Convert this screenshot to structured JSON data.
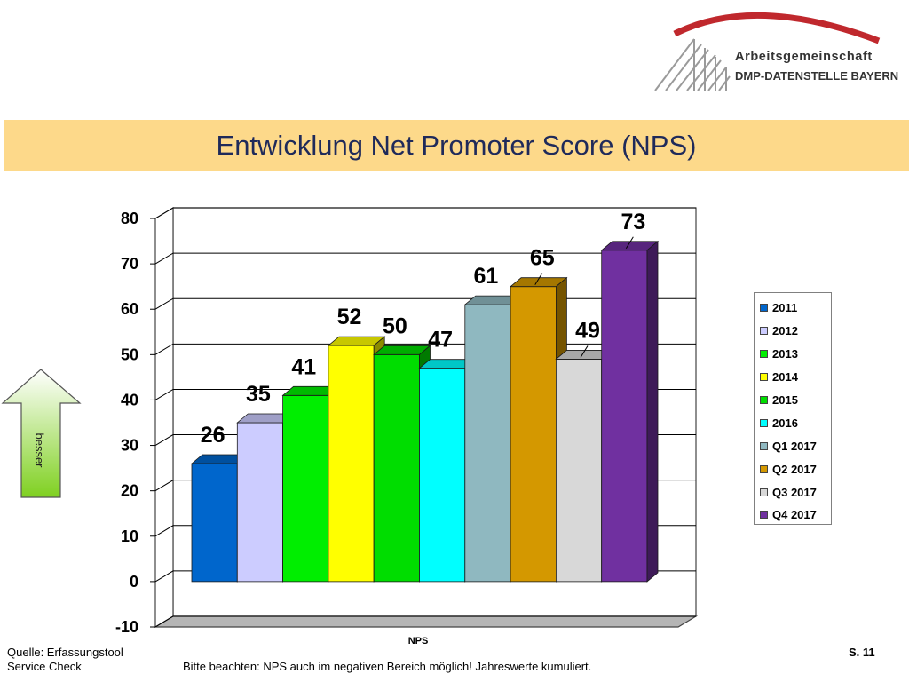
{
  "logo": {
    "line1": "Arbeitsgemeinschaft",
    "line2": "DMP-DATENSTELLE BAYERN",
    "colors": {
      "red": "#c0282d",
      "gray": "#9a9a9a"
    }
  },
  "title": "Entwicklung Net Promoter Score (NPS)",
  "chart_data": {
    "type": "bar",
    "categories": [
      "NPS"
    ],
    "xlabel": "NPS",
    "ylim": [
      -10,
      80
    ],
    "yticks": [
      -10,
      0,
      10,
      20,
      30,
      40,
      50,
      60,
      70,
      80
    ],
    "ytick_labels": [
      "-10",
      "0",
      "10",
      "20",
      "30",
      "40",
      "50",
      "60",
      "70",
      "80"
    ],
    "grid": true,
    "legend": "right",
    "series": [
      {
        "name": "2011",
        "values": [
          26
        ],
        "label": "26",
        "color": "#0066cc"
      },
      {
        "name": "2012",
        "values": [
          35
        ],
        "label": "35",
        "color": "#ccccff"
      },
      {
        "name": "2013",
        "values": [
          41
        ],
        "label": "41",
        "color": "#00ee00"
      },
      {
        "name": "2014",
        "values": [
          52
        ],
        "label": "52",
        "color": "#ffff00"
      },
      {
        "name": "2015",
        "values": [
          50
        ],
        "label": "50",
        "color": "#00dd00"
      },
      {
        "name": "2016",
        "values": [
          47
        ],
        "label": "47",
        "color": "#00ffff"
      },
      {
        "name": "Q1 2017",
        "values": [
          61
        ],
        "label": "61",
        "color": "#8fb8c0"
      },
      {
        "name": "Q2 2017",
        "values": [
          65
        ],
        "label": "65",
        "color": "#d49800"
      },
      {
        "name": "Q3 2017",
        "values": [
          49
        ],
        "label": "49",
        "color": "#d8d8d8"
      },
      {
        "name": "Q4 2017",
        "values": [
          73
        ],
        "label": "73",
        "color": "#7030a0"
      }
    ]
  },
  "arrow": {
    "label": "besser"
  },
  "footer": {
    "source_line1": "Quelle: Erfassungstool",
    "source_line2": "Service Check",
    "note": "Bitte beachten: NPS auch im negativen Bereich möglich! Jahreswerte kumuliert.",
    "page": "S. 11"
  }
}
